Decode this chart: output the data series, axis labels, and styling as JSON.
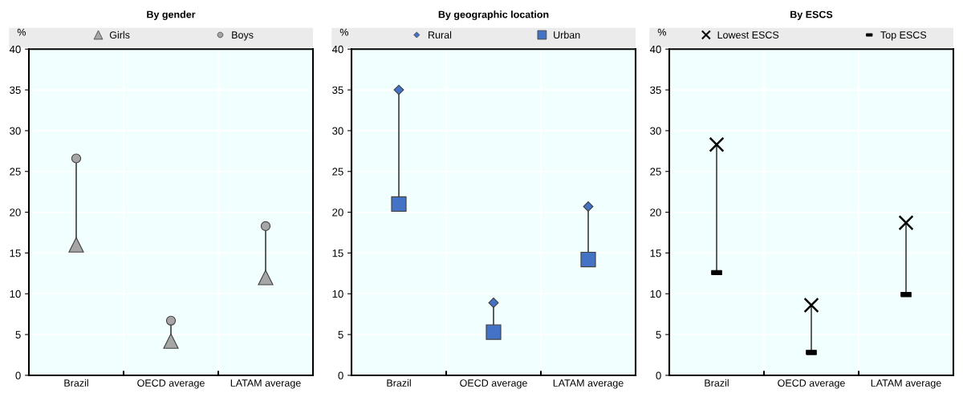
{
  "chart_data": [
    {
      "type": "scatter",
      "title": "By gender",
      "ylabel": "%",
      "categories": [
        "Brazil",
        "OECD average",
        "LATAM average"
      ],
      "ylim": [
        0,
        40
      ],
      "yticks": [
        0,
        5,
        10,
        15,
        20,
        25,
        30,
        35,
        40
      ],
      "grid": true,
      "legend": "top",
      "series": [
        {
          "name": "Girls",
          "color": "#a6a6a6",
          "marker": "triangle",
          "values": [
            16.0,
            4.2,
            12.0
          ]
        },
        {
          "name": "Boys",
          "color": "#a6a6a6",
          "marker": "circle",
          "values": [
            26.6,
            6.7,
            18.3
          ]
        }
      ]
    },
    {
      "type": "scatter",
      "title": "By geographic location",
      "ylabel": "%",
      "categories": [
        "Brazil",
        "OECD average",
        "LATAM average"
      ],
      "ylim": [
        0,
        40
      ],
      "yticks": [
        0,
        5,
        10,
        15,
        20,
        25,
        30,
        35,
        40
      ],
      "grid": true,
      "legend": "top",
      "series": [
        {
          "name": "Rural",
          "color": "#4472c4",
          "marker": "diamond",
          "values": [
            35.0,
            8.9,
            20.7
          ]
        },
        {
          "name": "Urban",
          "color": "#4472c4",
          "marker": "square",
          "values": [
            21.0,
            5.3,
            14.2
          ]
        }
      ]
    },
    {
      "type": "scatter",
      "title": "By ESCS",
      "ylabel": "%",
      "categories": [
        "Brazil",
        "OECD average",
        "LATAM average"
      ],
      "ylim": [
        0,
        40
      ],
      "yticks": [
        0,
        5,
        10,
        15,
        20,
        25,
        30,
        35,
        40
      ],
      "grid": true,
      "legend": "top",
      "series": [
        {
          "name": "Lowest ESCS",
          "color": "#000000",
          "marker": "cross",
          "values": [
            28.3,
            8.6,
            18.7
          ]
        },
        {
          "name": "Top ESCS",
          "color": "#000000",
          "values": [
            12.6,
            2.8,
            9.9
          ]
        }
      ]
    }
  ]
}
